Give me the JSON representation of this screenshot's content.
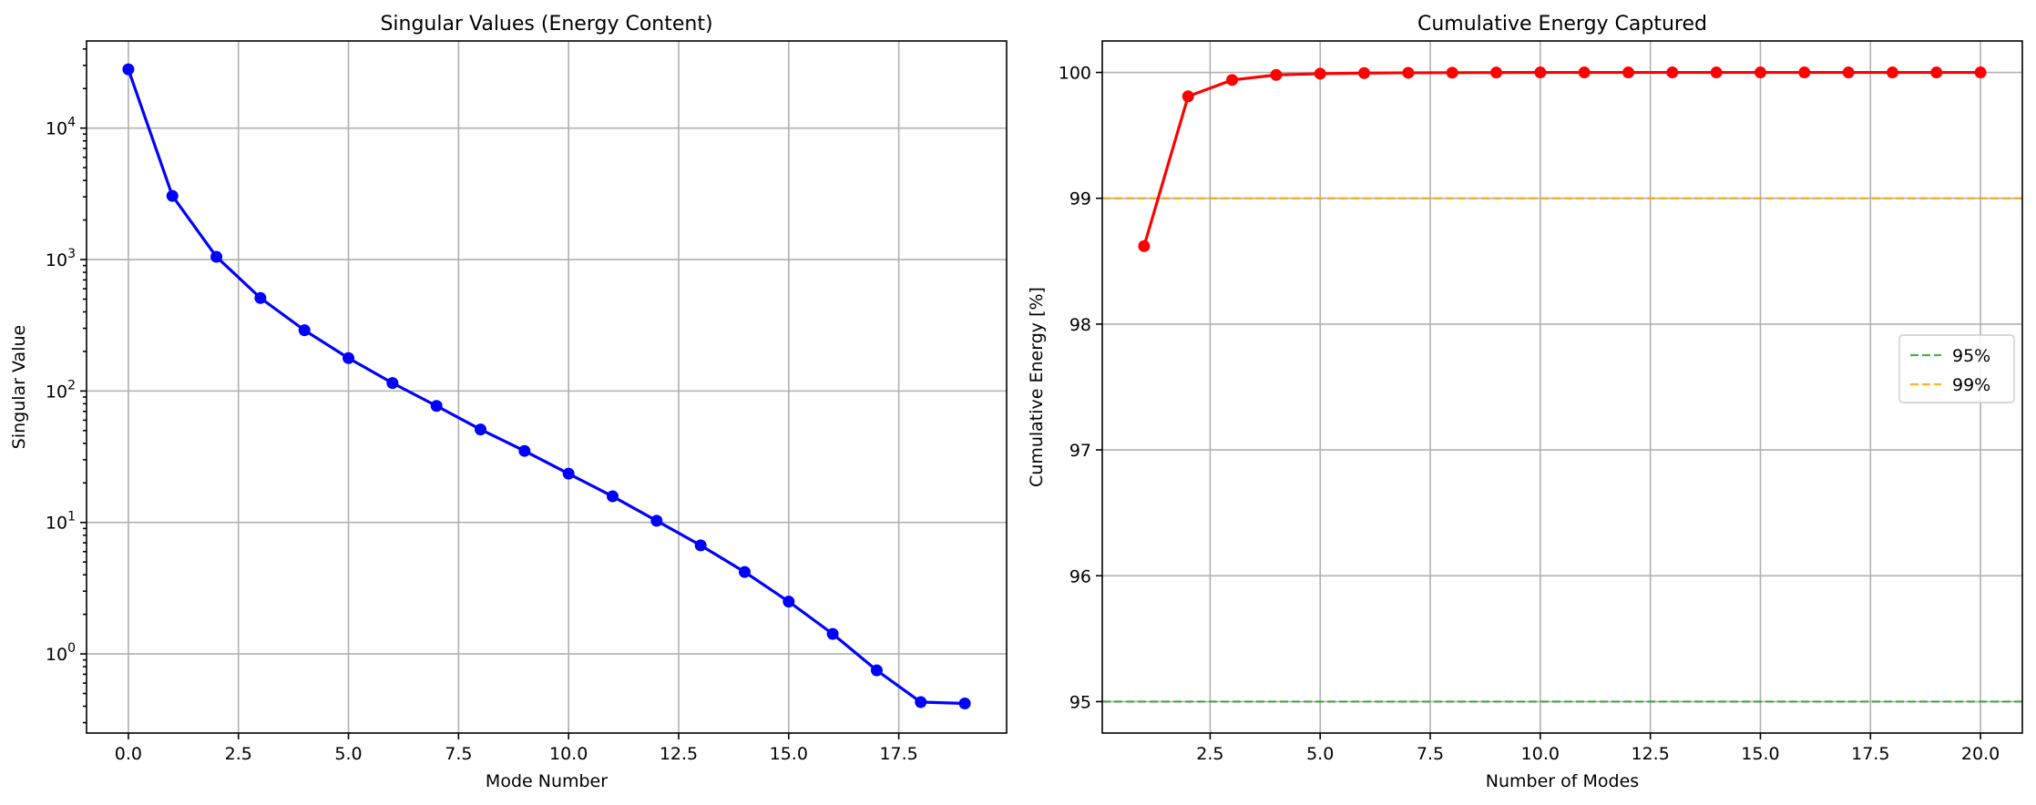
{
  "chart_data": [
    {
      "type": "line",
      "title": "Singular Values (Energy Content)",
      "xlabel": "Mode Number",
      "ylabel": "Singular Value",
      "yscale": "log",
      "xlim": [
        -0.95,
        19.95
      ],
      "ylim": [
        0.25,
        46000
      ],
      "xticks": [
        0.0,
        2.5,
        5.0,
        7.5,
        10.0,
        12.5,
        15.0,
        17.5
      ],
      "xtick_labels": [
        "0.0",
        "2.5",
        "5.0",
        "7.5",
        "10.0",
        "12.5",
        "15.0",
        "17.5"
      ],
      "yticks": [
        1,
        10,
        100,
        1000,
        10000
      ],
      "ytick_labels": [
        {
          "base": "10",
          "exp": "0"
        },
        {
          "base": "10",
          "exp": "1"
        },
        {
          "base": "10",
          "exp": "2"
        },
        {
          "base": "10",
          "exp": "3"
        },
        {
          "base": "10",
          "exp": "4"
        }
      ],
      "grid": true,
      "series": [
        {
          "color": "#0000ff",
          "marker": "circle",
          "x": [
            0,
            1,
            2,
            3,
            4,
            5,
            6,
            7,
            8,
            9,
            10,
            11,
            12,
            13,
            14,
            15,
            16,
            17,
            18,
            19
          ],
          "values": [
            28000,
            3050,
            1050,
            510,
            290,
            178,
            115,
            77,
            51,
            35,
            23.5,
            15.8,
            10.3,
            6.7,
            4.2,
            2.5,
            1.42,
            0.75,
            0.43,
            0.42
          ]
        }
      ]
    },
    {
      "type": "line",
      "title": "Cumulative Energy Captured",
      "xlabel": "Number of Modes",
      "ylabel": "Cumulative Energy [%]",
      "yscale": "linear",
      "xlim": [
        0.05,
        20.95
      ],
      "ylim": [
        94.75,
        100.25
      ],
      "xticks": [
        2.5,
        5.0,
        7.5,
        10.0,
        12.5,
        15.0,
        17.5,
        20.0
      ],
      "xtick_labels": [
        "2.5",
        "5.0",
        "7.5",
        "10.0",
        "12.5",
        "15.0",
        "17.5",
        "20.0"
      ],
      "yticks": [
        95,
        96,
        97,
        98,
        99,
        100
      ],
      "ytick_labels": [
        "95",
        "96",
        "97",
        "98",
        "99",
        "100"
      ],
      "grid": true,
      "legend_position": "center-right",
      "series": [
        {
          "color": "#ff0000",
          "marker": "circle",
          "x": [
            1,
            2,
            3,
            4,
            5,
            6,
            7,
            8,
            9,
            10,
            11,
            12,
            13,
            14,
            15,
            16,
            17,
            18,
            19,
            20
          ],
          "values": [
            98.62,
            99.81,
            99.94,
            99.98,
            99.99,
            99.995,
            99.997,
            99.998,
            99.999,
            100.0,
            100.0,
            100.0,
            100.0,
            100.0,
            100.0,
            100.0,
            100.0,
            100.0,
            100.0,
            100.0
          ]
        }
      ],
      "reference_lines": [
        {
          "name": "95%",
          "y": 95,
          "color": "#2ca02c",
          "style": "dashed"
        },
        {
          "name": "99%",
          "y": 99,
          "color": "#ffa500",
          "style": "dashed"
        }
      ]
    }
  ]
}
